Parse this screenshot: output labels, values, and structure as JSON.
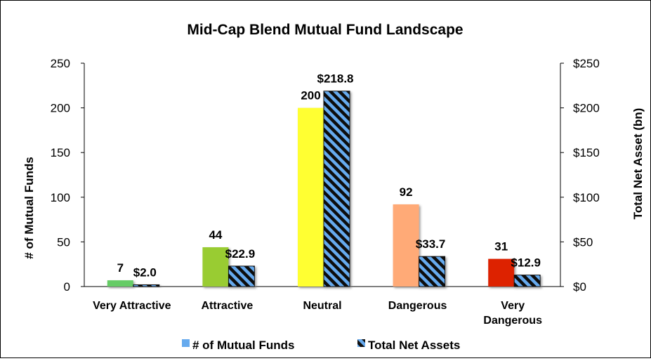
{
  "chart_data": {
    "type": "bar",
    "title": "Mid-Cap Blend Mutual Fund Landscape",
    "categories": [
      "Very Attractive",
      "Attractive",
      "Neutral",
      "Dangerous",
      "Very Dangerous"
    ],
    "category_lines": [
      [
        "Very Attractive"
      ],
      [
        "Attractive"
      ],
      [
        "Neutral"
      ],
      [
        "Dangerous"
      ],
      [
        "Very",
        "Dangerous"
      ]
    ],
    "series": [
      {
        "name": "# of Mutual Funds",
        "axis": "left",
        "values": [
          7,
          44,
          200,
          92,
          31
        ],
        "data_labels": [
          "7",
          "44",
          "200",
          "92",
          "31"
        ],
        "colors": [
          "#66CC66",
          "#99CC33",
          "#FFFF33",
          "#FFAA77",
          "#DD2200"
        ]
      },
      {
        "name": "Total Net Assets",
        "axis": "right",
        "values": [
          2.0,
          22.9,
          218.8,
          33.7,
          12.9
        ],
        "data_labels": [
          "$2.0",
          "$22.9",
          "$218.8",
          "$33.7",
          "$12.9"
        ],
        "pattern": "diagonal-stripes",
        "colors": [
          "#66AAEE",
          "#111111"
        ]
      }
    ],
    "ylabel": "# of Mutual Funds",
    "ylabel_right": "Total Net Asset (bn)",
    "ylim": [
      0,
      250
    ],
    "ylim_right": [
      0,
      250
    ],
    "yticks": [
      "0",
      "50",
      "100",
      "150",
      "200",
      "250"
    ],
    "yticks_right": [
      "$0",
      "$50",
      "$100",
      "$150",
      "$200",
      "$250"
    ],
    "grid": false,
    "legend_position": "bottom",
    "legend": [
      {
        "label": "# of Mutual Funds",
        "color": "#66AAEE"
      },
      {
        "label": "Total Net Assets",
        "pattern": "diagonal-stripes"
      }
    ]
  }
}
